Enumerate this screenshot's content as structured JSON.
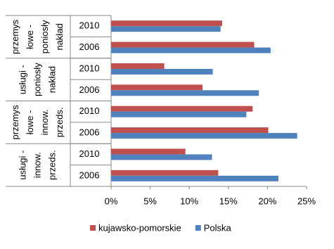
{
  "chart_data": {
    "type": "hbar",
    "groups": [
      {
        "label_lines": [
          "przemys",
          "łowe -",
          "poniosły",
          "nakład"
        ]
      },
      {
        "label_lines": [
          "usługi -",
          "poniosły",
          "nakład"
        ]
      },
      {
        "label_lines": [
          "przemys",
          "łowe -",
          "innow.",
          "przeds."
        ]
      },
      {
        "label_lines": [
          "usługi -",
          "innow.",
          "przeds."
        ]
      }
    ],
    "categories": [
      "2010",
      "2006",
      "2010",
      "2006",
      "2010",
      "2006",
      "2010",
      "2006"
    ],
    "series": [
      {
        "name": "kujawsko-pomorskie",
        "color": "#c0504d",
        "values": [
          14.2,
          18.3,
          6.8,
          11.7,
          18.1,
          20.1,
          9.5,
          13.7
        ]
      },
      {
        "name": "Polska",
        "color": "#4f81bd",
        "values": [
          14.0,
          20.4,
          13.0,
          18.9,
          17.3,
          23.8,
          12.9,
          21.4
        ]
      }
    ],
    "xlim": [
      0,
      25
    ],
    "xticks": [
      {
        "value": 0,
        "label": "0%"
      },
      {
        "value": 5,
        "label": "5%"
      },
      {
        "value": 10,
        "label": "10%"
      },
      {
        "value": 15,
        "label": "15%"
      },
      {
        "value": 20,
        "label": "20%"
      },
      {
        "value": 25,
        "label": "25%"
      }
    ],
    "legend": "bottom"
  }
}
